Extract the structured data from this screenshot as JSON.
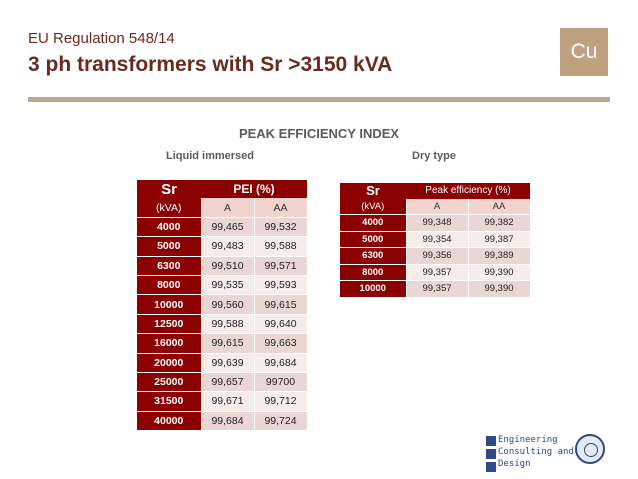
{
  "header": {
    "kicker": "EU Regulation 548/14",
    "title": "3 ph transformers with Sr >3150 kVA",
    "logo_text": "Cu"
  },
  "section_title": "PEAK EFFICIENCY INDEX",
  "liquid": {
    "label": "Liquid immersed",
    "sr_header": "Sr",
    "pei_header": "PEI  (%)",
    "unit": "(kVA)",
    "col_a": "A",
    "col_aa": "AA",
    "rows": [
      {
        "sr": "4000",
        "a": "99,465",
        "aa": "99,532"
      },
      {
        "sr": "5000",
        "a": "99,483",
        "aa": "99,588"
      },
      {
        "sr": "6300",
        "a": "99,510",
        "aa": "99,571"
      },
      {
        "sr": "8000",
        "a": "99,535",
        "aa": "99,593"
      },
      {
        "sr": "10000",
        "a": "99,560",
        "aa": "99,615"
      },
      {
        "sr": "12500",
        "a": "99,588",
        "aa": "99,640"
      },
      {
        "sr": "16000",
        "a": "99,615",
        "aa": "99,663"
      },
      {
        "sr": "20000",
        "a": "99,639",
        "aa": "99,684"
      },
      {
        "sr": "25000",
        "a": "99,657",
        "aa": "99700"
      },
      {
        "sr": "31500",
        "a": "99,671",
        "aa": "99,712"
      },
      {
        "sr": "40000",
        "a": "99,684",
        "aa": "99,724"
      }
    ]
  },
  "dry": {
    "label": "Dry type",
    "sr_header": "Sr",
    "pei_header": "Peak efficiency (%)",
    "unit": "(kVA)",
    "col_a": "A",
    "col_aa": "AA",
    "rows": [
      {
        "sr": "4000",
        "a": "99,348",
        "aa": "99,382"
      },
      {
        "sr": "5000",
        "a": "99,354",
        "aa": "99,387"
      },
      {
        "sr": "6300",
        "a": "99,356",
        "aa": "99,389"
      },
      {
        "sr": "8000",
        "a": "99,357",
        "aa": "99,390"
      },
      {
        "sr": "10000",
        "a": "99,357",
        "aa": "99,390"
      }
    ]
  },
  "footer_logo": {
    "line1": "Engineering",
    "line2": "Consulting and",
    "line3": "Design"
  },
  "colors": {
    "accent_dark_red": "#8b0000",
    "title_brown": "#6a2a1e",
    "logo_tan": "#c0a17f",
    "row_light": "#ead7d4",
    "row_lighter": "#f6ecea",
    "ecd_blue": "#2e4a86"
  }
}
